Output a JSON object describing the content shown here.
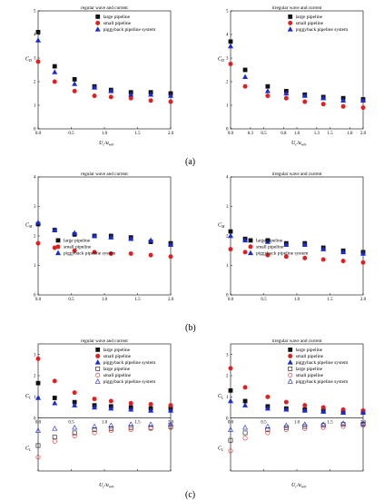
{
  "captions": [
    "(a)",
    "(b)",
    "(c)"
  ],
  "legend_labels": [
    "large pipeline",
    "small pipeline",
    "piggyback pipeline system"
  ],
  "series_colors": {
    "large": "#111111",
    "small": "#e02020",
    "piggy": "#1a2bd6"
  },
  "chart_data": [
    {
      "type": "scatter",
      "title": "regular wave and current",
      "xlabel": "U_c/u_wm",
      "ylabel": "C_D",
      "xlim": [
        0,
        2.0
      ],
      "ylim": [
        0,
        5
      ],
      "xticks": [
        "0.0",
        "0.5",
        "1.0",
        "1.5",
        "2.0"
      ],
      "yticks": [
        "0",
        "1",
        "2",
        "3",
        "4",
        "5"
      ],
      "legend": "top-right",
      "x": [
        0.0,
        0.25,
        0.55,
        0.85,
        1.1,
        1.4,
        1.7,
        2.0
      ],
      "series": [
        {
          "name": "large pipeline",
          "values": [
            4.1,
            2.65,
            2.1,
            1.8,
            1.65,
            1.55,
            1.55,
            1.5
          ]
        },
        {
          "name": "small pipeline",
          "values": [
            2.85,
            2.0,
            1.6,
            1.4,
            1.35,
            1.3,
            1.2,
            1.15
          ]
        },
        {
          "name": "piggyback pipeline system",
          "values": [
            3.75,
            2.4,
            1.9,
            1.75,
            1.6,
            1.45,
            1.45,
            1.4
          ]
        }
      ]
    },
    {
      "type": "scatter",
      "title": "irregular wave and current",
      "xlabel": "U_c/u_wm",
      "ylabel": "C_D",
      "xlim": [
        0,
        2.0
      ],
      "ylim": [
        0,
        5
      ],
      "xticks": [
        "0.0",
        "0.3",
        "0.5",
        "0.8",
        "1.0",
        "1.3",
        "1.5",
        "1.8",
        "2.0"
      ],
      "yticks": [
        "0",
        "1",
        "2",
        "3",
        "4",
        "5"
      ],
      "legend": "top-right",
      "x": [
        0.0,
        0.22,
        0.56,
        0.84,
        1.12,
        1.4,
        1.7,
        2.0
      ],
      "series": [
        {
          "name": "large pipeline",
          "values": [
            3.7,
            2.5,
            1.8,
            1.6,
            1.45,
            1.35,
            1.3,
            1.25
          ]
        },
        {
          "name": "small pipeline",
          "values": [
            2.75,
            1.8,
            1.4,
            1.3,
            1.15,
            1.05,
            0.95,
            0.9
          ]
        },
        {
          "name": "piggyback pipeline system",
          "values": [
            3.5,
            2.2,
            1.6,
            1.5,
            1.4,
            1.3,
            1.2,
            1.2
          ]
        }
      ]
    },
    {
      "type": "scatter",
      "title": "regular wave and current",
      "xlabel": "",
      "ylabel": "C_M",
      "xlim": [
        0,
        2.0
      ],
      "ylim": [
        0,
        4
      ],
      "xticks": [
        "0.0",
        "0.5",
        "1.0",
        "1.5",
        "2.0"
      ],
      "yticks": [
        "0",
        "1",
        "2",
        "3",
        "4"
      ],
      "legend": "bottom-left",
      "x": [
        0.0,
        0.25,
        0.55,
        0.85,
        1.1,
        1.4,
        1.7,
        2.0
      ],
      "series": [
        {
          "name": "large pipeline",
          "values": [
            2.4,
            2.2,
            2.05,
            2.0,
            2.0,
            1.95,
            1.8,
            1.75
          ]
        },
        {
          "name": "small pipeline",
          "values": [
            1.75,
            1.6,
            1.5,
            1.45,
            1.4,
            1.4,
            1.35,
            1.3
          ]
        },
        {
          "name": "piggyback pipeline system",
          "values": [
            2.45,
            2.2,
            2.1,
            2.0,
            1.95,
            1.9,
            1.85,
            1.7
          ]
        }
      ]
    },
    {
      "type": "scatter",
      "title": "irregular wave and current",
      "xlabel": "",
      "ylabel": "C_M",
      "xlim": [
        0,
        2.0
      ],
      "ylim": [
        0,
        4
      ],
      "xticks": [
        "0.0",
        "0.5",
        "1.0",
        "1.5",
        "2.0"
      ],
      "yticks": [
        "0",
        "1",
        "2",
        "3",
        "4"
      ],
      "legend": "bottom-left",
      "x": [
        0.0,
        0.22,
        0.56,
        0.84,
        1.12,
        1.4,
        1.7,
        2.0
      ],
      "series": [
        {
          "name": "large pipeline",
          "values": [
            2.15,
            1.9,
            1.85,
            1.75,
            1.75,
            1.6,
            1.5,
            1.45
          ]
        },
        {
          "name": "small pipeline",
          "values": [
            1.55,
            1.45,
            1.35,
            1.3,
            1.25,
            1.2,
            1.15,
            1.1
          ]
        },
        {
          "name": "piggyback pipeline system",
          "values": [
            2.0,
            1.85,
            1.8,
            1.7,
            1.7,
            1.55,
            1.45,
            1.4
          ]
        }
      ]
    },
    {
      "type": "scatter",
      "title": "regular wave and current",
      "xlabel": "U_c/u_wm",
      "ylabel": "C_L",
      "xlim": [
        0,
        2.0
      ],
      "ylim": [
        -2.5,
        3.5
      ],
      "xticks": [
        "0.0",
        "0.5",
        "1.0",
        "1.5",
        "2.0"
      ],
      "yticks": [
        "0",
        "1",
        "2",
        "3"
      ],
      "legend": "top-right",
      "x": [
        0.0,
        0.25,
        0.55,
        0.85,
        1.1,
        1.4,
        1.7,
        2.0
      ],
      "series": [
        {
          "name": "large pipeline",
          "values": [
            1.65,
            0.95,
            0.75,
            0.6,
            0.55,
            0.5,
            0.45,
            0.45
          ]
        },
        {
          "name": "small pipeline",
          "values": [
            2.8,
            1.75,
            1.2,
            0.9,
            0.8,
            0.7,
            0.65,
            0.6
          ]
        },
        {
          "name": "piggyback pipeline system",
          "values": [
            0.95,
            0.7,
            0.6,
            0.5,
            0.45,
            0.4,
            0.35,
            0.35
          ]
        },
        {
          "name": "large pipeline",
          "values": [
            -1.3,
            -0.9,
            -0.7,
            -0.55,
            -0.5,
            -0.45,
            -0.45,
            -0.4
          ]
        },
        {
          "name": "small pipeline",
          "values": [
            -1.85,
            -1.1,
            -0.85,
            -0.7,
            -0.6,
            -0.55,
            -0.5,
            -0.45
          ]
        },
        {
          "name": "piggyback pipeline system",
          "values": [
            -0.6,
            -0.5,
            -0.45,
            -0.4,
            -0.35,
            -0.3,
            -0.3,
            -0.3
          ]
        }
      ]
    },
    {
      "type": "scatter",
      "title": "irregular wave and current",
      "xlabel": "U_c/u_wm",
      "ylabel": "C_L",
      "xlim": [
        0,
        2.0
      ],
      "ylim": [
        -2.5,
        3.5
      ],
      "xticks": [
        "0.0",
        "0.5",
        "1.0",
        "1.5",
        "2.0"
      ],
      "yticks": [
        "0",
        "1",
        "2",
        "3"
      ],
      "legend": "top-right",
      "x": [
        0.0,
        0.22,
        0.56,
        0.84,
        1.12,
        1.4,
        1.7,
        2.0
      ],
      "series": [
        {
          "name": "large pipeline",
          "values": [
            1.3,
            0.8,
            0.55,
            0.45,
            0.4,
            0.35,
            0.3,
            0.3
          ]
        },
        {
          "name": "small pipeline",
          "values": [
            2.35,
            1.45,
            1.0,
            0.75,
            0.6,
            0.5,
            0.4,
            0.35
          ]
        },
        {
          "name": "piggyback pipeline system",
          "values": [
            0.8,
            0.6,
            0.45,
            0.4,
            0.35,
            0.3,
            0.25,
            0.25
          ]
        },
        {
          "name": "large pipeline",
          "values": [
            -1.05,
            -0.7,
            -0.55,
            -0.45,
            -0.4,
            -0.35,
            -0.3,
            -0.3
          ]
        },
        {
          "name": "small pipeline",
          "values": [
            -1.55,
            -0.95,
            -0.7,
            -0.55,
            -0.5,
            -0.45,
            -0.4,
            -0.35
          ]
        },
        {
          "name": "piggyback pipeline system",
          "values": [
            -0.55,
            -0.45,
            -0.4,
            -0.35,
            -0.3,
            -0.3,
            -0.25,
            -0.25
          ]
        }
      ]
    }
  ]
}
